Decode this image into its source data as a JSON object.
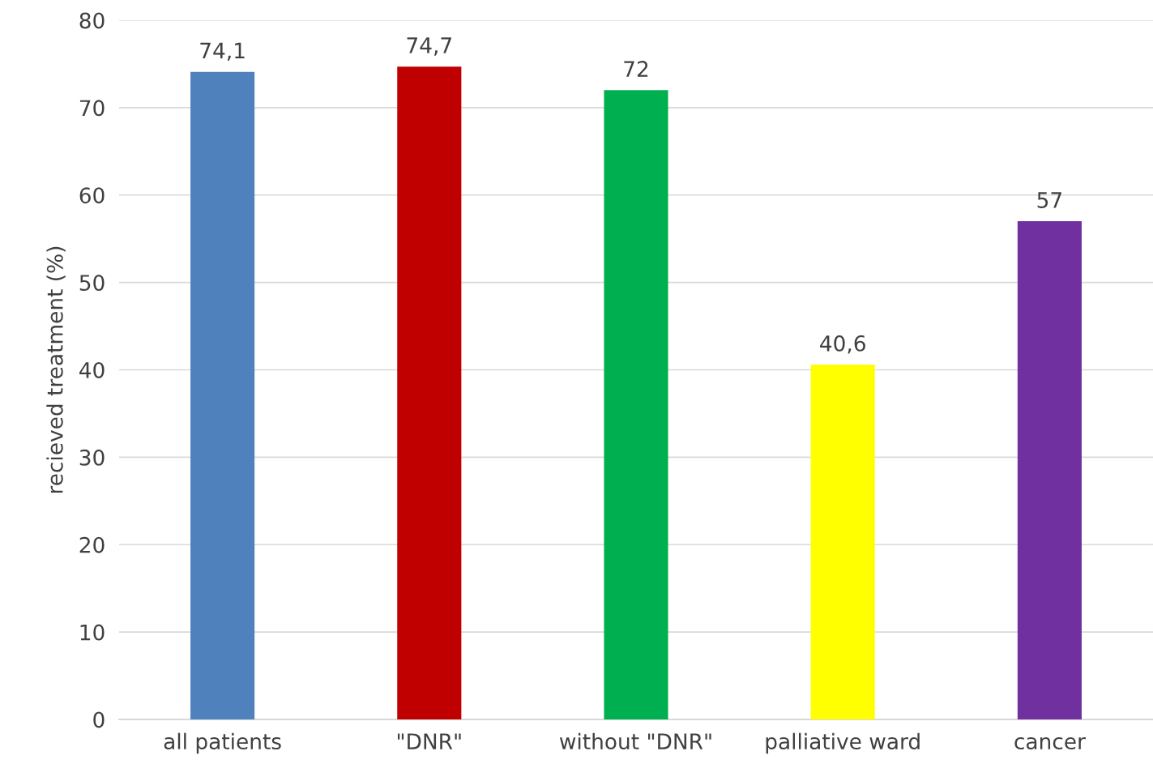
{
  "chart_data": {
    "type": "bar",
    "ylabel": "recieved treatment (%)",
    "categories": [
      "all patients",
      "\"DNR\"",
      "without \"DNR\"",
      "palliative ward",
      "cancer"
    ],
    "values": [
      74.1,
      74.7,
      72,
      40.6,
      57
    ],
    "colors": [
      "#4f81bd",
      "#c00000",
      "#00b050",
      "#ffff00",
      "#7030a0"
    ],
    "value_labels": [
      "74,1",
      "74,7",
      "72",
      "40,6",
      "57"
    ],
    "ylim": [
      0,
      80
    ],
    "yticks": [
      0,
      10,
      20,
      30,
      40,
      50,
      60,
      70,
      80
    ],
    "grid": "y",
    "legend": false
  }
}
